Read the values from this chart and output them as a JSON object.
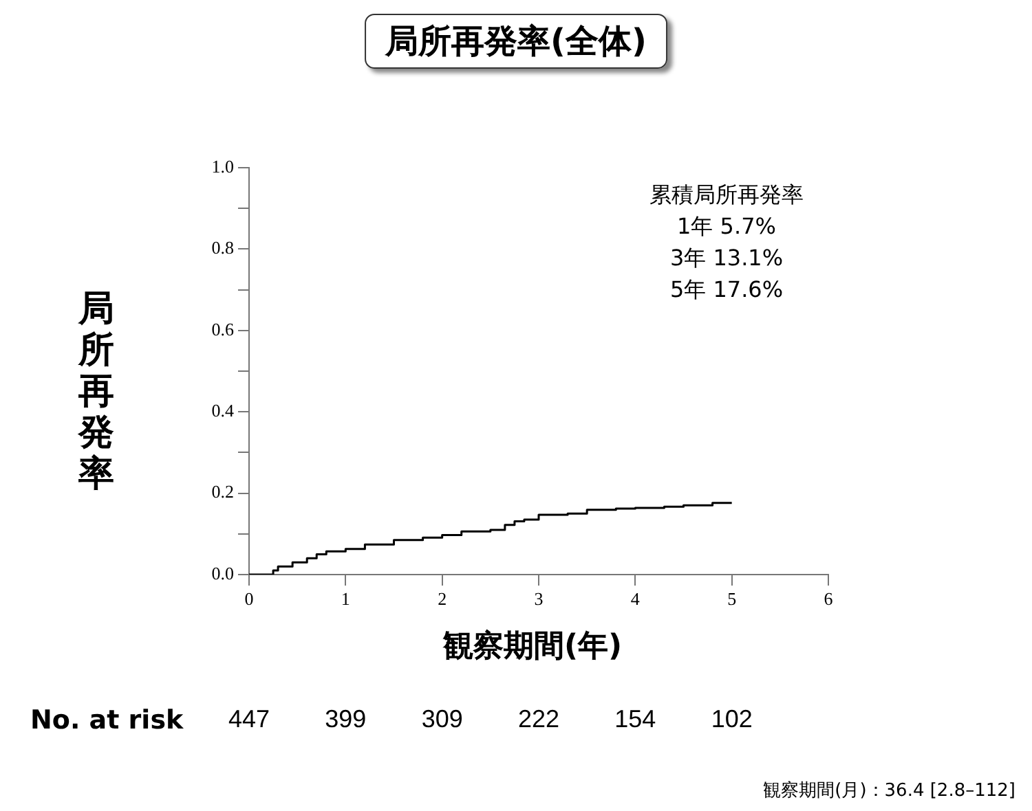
{
  "chart_data": {
    "type": "step",
    "title": "局所再発率(全体)",
    "xlabel": "観察期間(年)",
    "ylabel": "局所再発率",
    "x": [
      0,
      0.25,
      0.3,
      0.45,
      0.6,
      0.7,
      0.8,
      1.0,
      1.2,
      1.5,
      1.8,
      2.0,
      2.2,
      2.5,
      2.65,
      2.75,
      2.85,
      3.0,
      3.3,
      3.5,
      3.8,
      4.0,
      4.3,
      4.5,
      4.8,
      4.85,
      5.0
    ],
    "series": [
      {
        "color": "#000000",
        "values": [
          0,
          0,
          0.01,
          0.02,
          0.03,
          0.04,
          0.05,
          0.057,
          0.063,
          0.074,
          0.085,
          0.091,
          0.097,
          0.106,
          0.11,
          0.122,
          0.131,
          0.135,
          0.147,
          0.15,
          0.159,
          0.162,
          0.164,
          0.167,
          0.17,
          0.176,
          0.176
        ]
      }
    ],
    "xlim": [
      0,
      6
    ],
    "xticks": [
      0,
      1,
      2,
      3,
      4,
      5,
      6
    ],
    "ylim": [
      0,
      1
    ],
    "yticks": [
      {
        "value": 0,
        "label": "0.0"
      },
      {
        "value": 0.1,
        "label": null
      },
      {
        "value": 0.2,
        "label": "0.2"
      },
      {
        "value": 0.3,
        "label": null
      },
      {
        "value": 0.4,
        "label": "0.4"
      },
      {
        "value": 0.5,
        "label": null
      },
      {
        "value": 0.6,
        "label": "0.6"
      },
      {
        "value": 0.7,
        "label": null
      },
      {
        "value": 0.8,
        "label": "0.8"
      },
      {
        "value": 0.9,
        "label": null
      },
      {
        "value": 1,
        "label": "1.0"
      }
    ],
    "grid": false,
    "legend": false,
    "annotations": [
      "累積局所再発率",
      "1年  5.7%",
      "3年  13.1%",
      "5年  17.6%",
      "No. at risk",
      "観察期間(月)：36.4 [2.8–112]",
      "447",
      "399",
      "309",
      "222",
      "154",
      "102"
    ]
  }
}
